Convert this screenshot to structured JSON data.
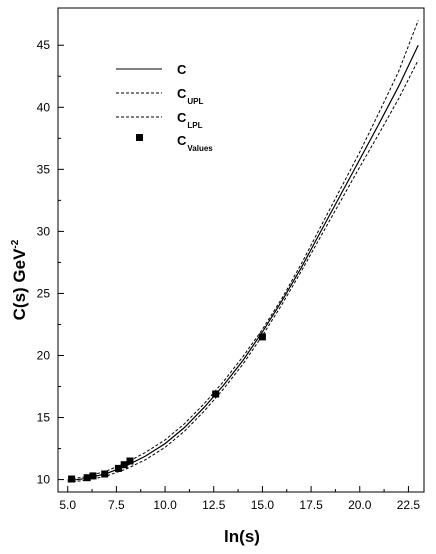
{
  "chart_data": {
    "type": "line",
    "xlabel": "ln(s)",
    "ylabel_main": "C(s)  GeV",
    "ylabel_exp": "-2",
    "xlim": [
      4.5,
      23.3
    ],
    "ylim": [
      9.0,
      48.0
    ],
    "x_ticks": [
      "5.0",
      "7.5",
      "10.0",
      "12.5",
      "15.0",
      "17.5",
      "20.0",
      "22.5"
    ],
    "x_tick_values": [
      5.0,
      7.5,
      10.0,
      12.5,
      15.0,
      17.5,
      20.0,
      22.5
    ],
    "y_ticks": [
      "10",
      "15",
      "20",
      "25",
      "30",
      "35",
      "40",
      "45"
    ],
    "y_tick_values": [
      10,
      15,
      20,
      25,
      30,
      35,
      40,
      45
    ],
    "grid": false,
    "legend_position": "top-left",
    "legend": [
      {
        "main": "C",
        "sub": "",
        "style": "solid"
      },
      {
        "main": "C",
        "sub": "UPL",
        "style": "dashed"
      },
      {
        "main": "C",
        "sub": "LPL",
        "style": "dashed"
      },
      {
        "main": "C",
        "sub": "Values",
        "style": "square-marker"
      }
    ],
    "series": [
      {
        "style": "solid",
        "x": [
          5.0,
          6.0,
          7.0,
          8.0,
          9.0,
          10.0,
          11.0,
          12.0,
          13.0,
          14.0,
          15.0,
          16.0,
          17.0,
          18.0,
          19.0,
          20.0,
          21.0,
          22.0,
          23.0
        ],
        "y": [
          9.9,
          10.1,
          10.5,
          11.1,
          11.9,
          12.9,
          14.2,
          15.8,
          17.6,
          19.6,
          21.9,
          24.4,
          27.1,
          30.0,
          32.9,
          35.8,
          38.7,
          41.7,
          45.0
        ]
      },
      {
        "style": "dashed",
        "x": [
          5.0,
          6.0,
          7.0,
          8.0,
          9.0,
          10.0,
          11.0,
          12.0,
          13.0,
          14.0,
          15.0,
          16.0,
          17.0,
          18.0,
          19.0,
          20.0,
          21.0,
          22.0,
          23.0
        ],
        "y": [
          10.0,
          10.25,
          10.7,
          11.35,
          12.2,
          13.2,
          14.5,
          16.1,
          17.9,
          19.9,
          22.1,
          24.6,
          27.4,
          30.4,
          33.4,
          36.4,
          39.6,
          42.9,
          47.0
        ]
      },
      {
        "style": "dashed",
        "x": [
          5.0,
          6.0,
          7.0,
          8.0,
          9.0,
          10.0,
          11.0,
          12.0,
          13.0,
          14.0,
          15.0,
          16.0,
          17.0,
          18.0,
          19.0,
          20.0,
          21.0,
          22.0,
          23.0
        ],
        "y": [
          9.8,
          9.95,
          10.3,
          10.85,
          11.6,
          12.6,
          13.9,
          15.5,
          17.3,
          19.3,
          21.6,
          24.1,
          26.8,
          29.6,
          32.4,
          35.2,
          37.9,
          40.7,
          43.8
        ]
      }
    ],
    "points": {
      "x": [
        5.2,
        6.0,
        6.3,
        6.9,
        7.6,
        7.9,
        8.2,
        12.6,
        15.0
      ],
      "y": [
        10.05,
        10.15,
        10.3,
        10.45,
        10.9,
        11.2,
        11.5,
        16.9,
        21.5
      ]
    }
  }
}
